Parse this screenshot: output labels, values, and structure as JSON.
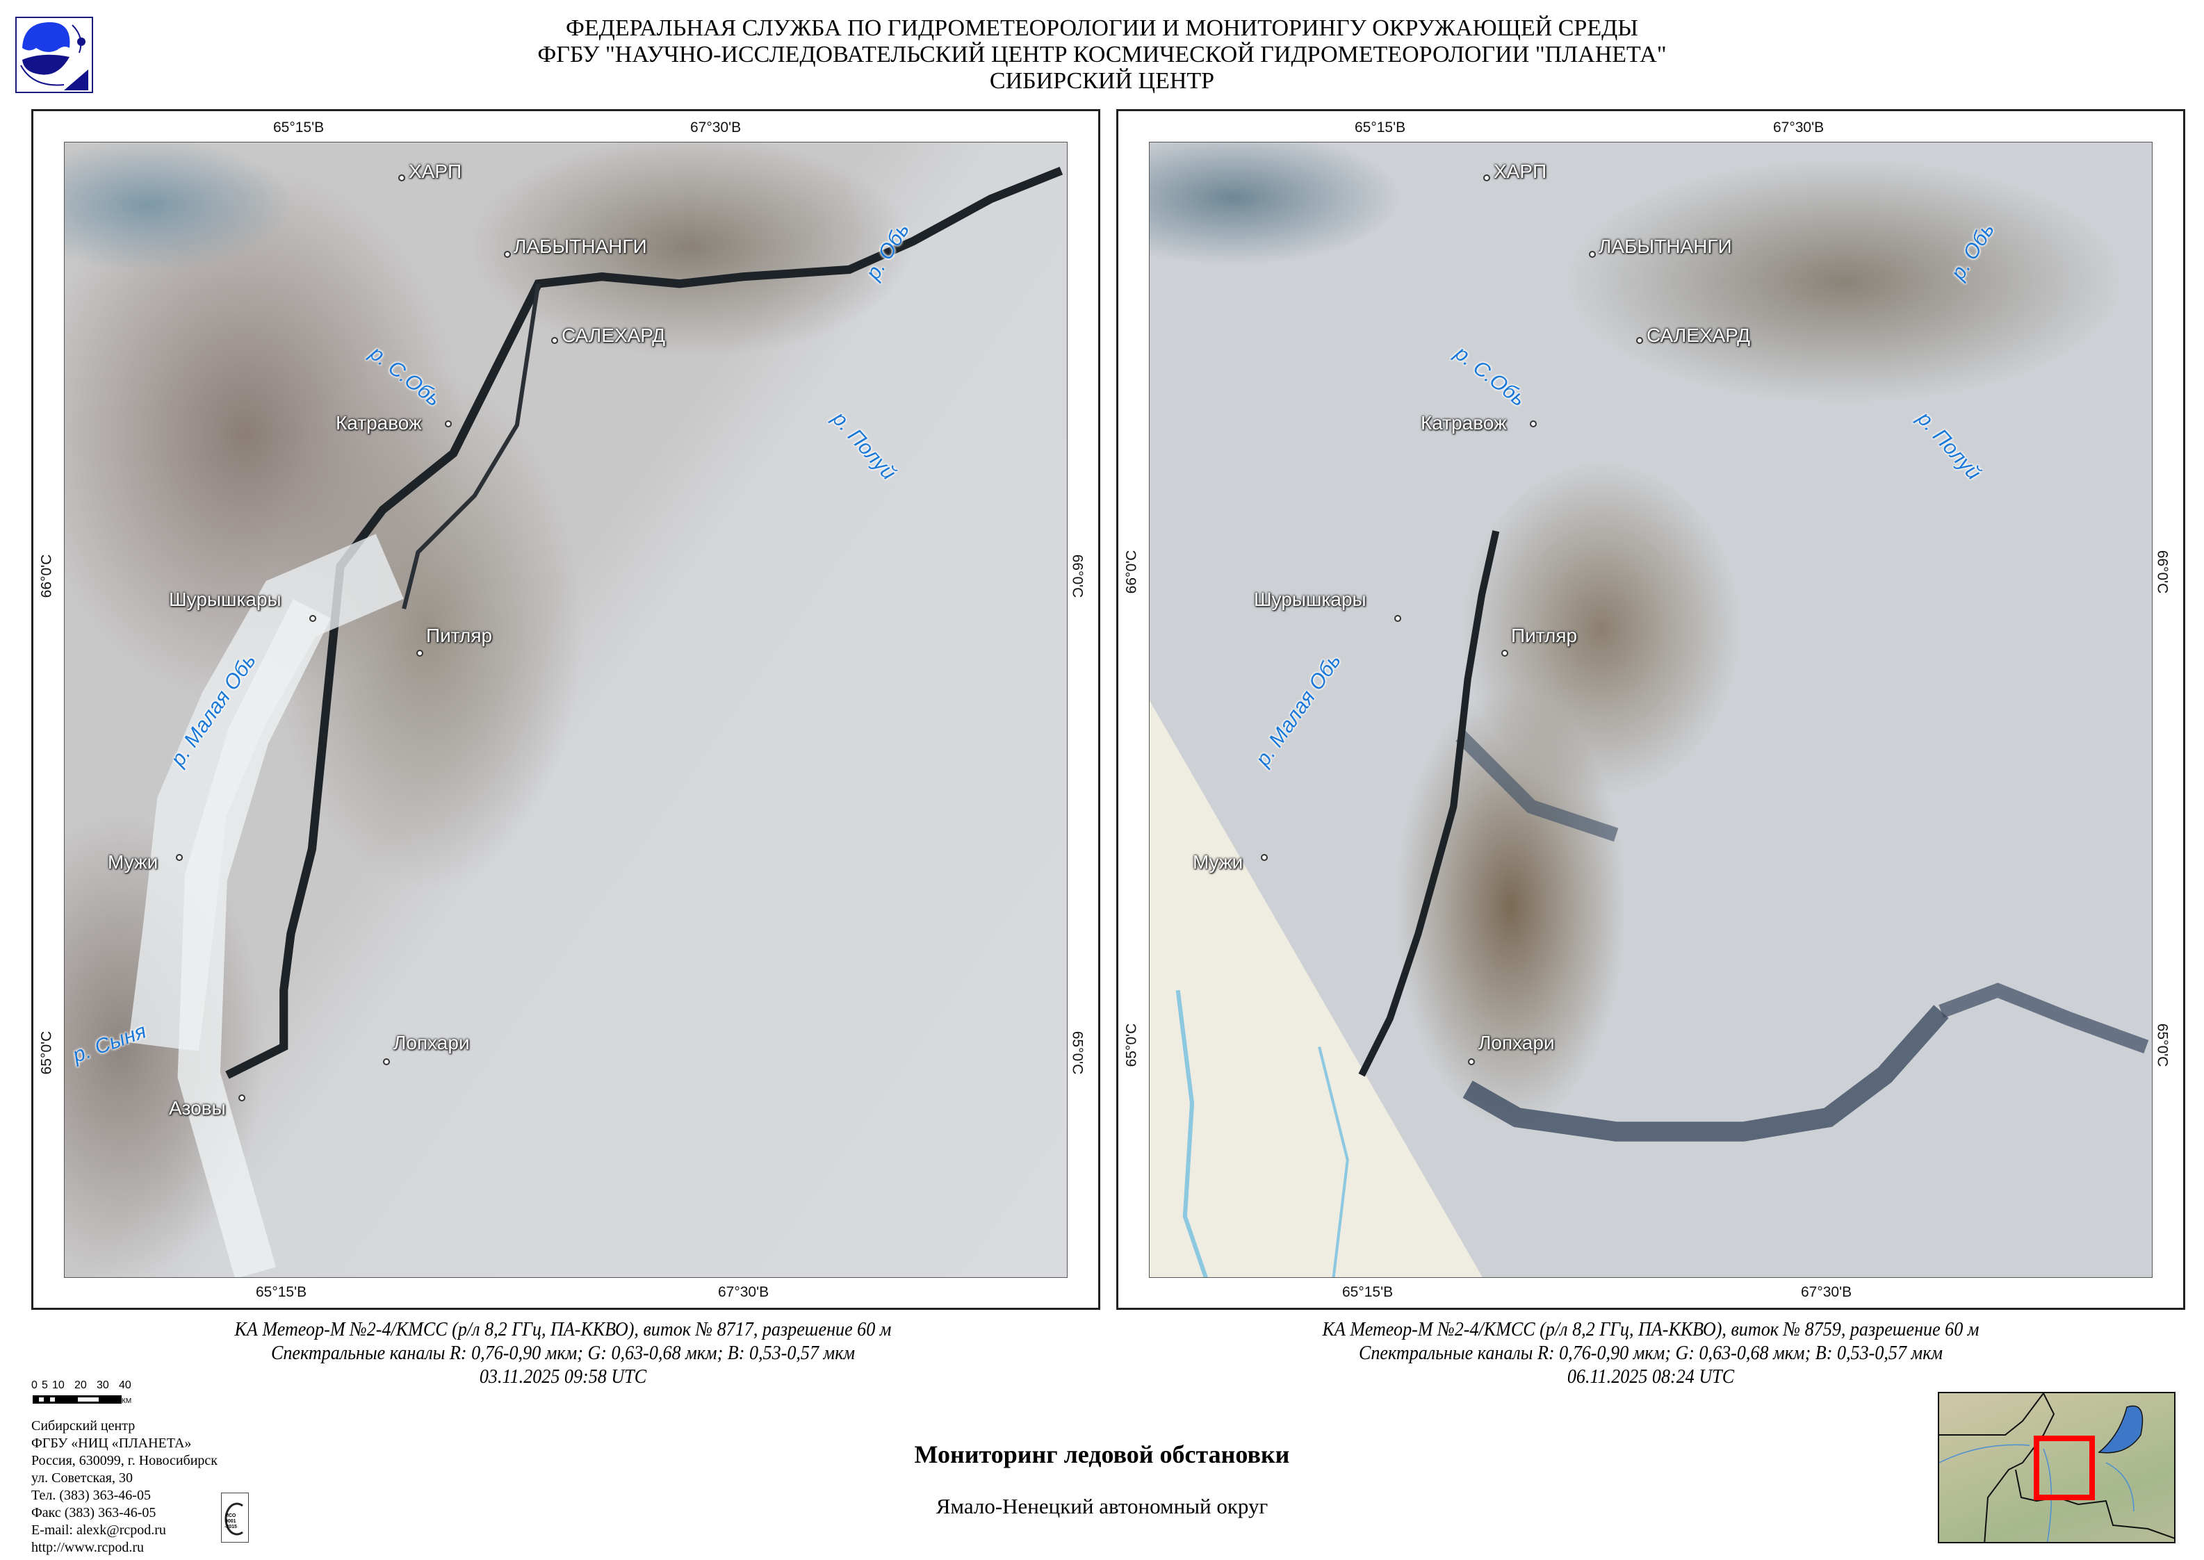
{
  "header": {
    "line1": "ФЕДЕРАЛЬНАЯ СЛУЖБА ПО ГИДРОМЕТЕОРОЛОГИИ И МОНИТОРИНГУ ОКРУЖАЮЩЕЙ СРЕДЫ",
    "line2": "ФГБУ \"НАУЧНО-ИССЛЕДОВАТЕЛЬСКИЙ ЦЕНТР КОСМИЧЕСКОЙ ГИДРОМЕТЕОРОЛОГИИ \"ПЛАНЕТА\"",
    "line3": "СИБИРСКИЙ ЦЕНТР"
  },
  "ticks": {
    "lon1": "65°15'В",
    "lon2": "67°30'В",
    "lat1": "66°0'С",
    "lat2": "65°0'С"
  },
  "places": {
    "harp": "ХАРП",
    "labytnangi": "ЛАБЫТНАНГИ",
    "salekhard": "САЛЕХАРД",
    "katravozh": "Катравож",
    "shuryshkary": "Шурышкары",
    "pitlyar": "Питляр",
    "muzhi": "Мужи",
    "lopkhari": "Лопхари",
    "azovy": "Азовы"
  },
  "rivers": {
    "ob": "р. Обь",
    "sob": "р. С.Обь",
    "poluy": "р. Полуй",
    "malaya_ob": "р. Малая Обь",
    "synya": "р. Сыня"
  },
  "maps": [
    {
      "caption1": "КА Метеор-М №2-4/КМСС (р/л 8,2 ГГц, ПА-ККВО), виток № 8717, разрешение 60 м",
      "caption2": "Спектральные каналы R: 0,76-0,90 мкм; G: 0,63-0,68 мкм; B: 0,53-0,57 мкм",
      "caption3": "03.11.2025  09:58 UTC"
    },
    {
      "caption1": "КА Метеор-М №2-4/КМСС (р/л 8,2 ГГц, ПА-ККВО), виток № 8759, разрешение 60 м",
      "caption2": "Спектральные каналы R: 0,76-0,90 мкм; G: 0,63-0,68 мкм; B: 0,53-0,57 мкм",
      "caption3": "06.11.2025  08:24 UTC"
    }
  ],
  "scale": {
    "labels": [
      "0",
      "5",
      "10",
      "20",
      "30",
      "40"
    ],
    "unit": "КМ"
  },
  "address": [
    "Сибирский центр",
    "ФГБУ «НИЦ «ПЛАНЕТА»",
    "Россия, 630099, г. Новосибирск",
    "ул. Советская, 30",
    "Тел. (383) 363-46-05",
    "Факс (383) 363-46-05",
    "E-mail: alexk@rcpod.ru",
    "http://www.rcpod.ru"
  ],
  "iso_logo": {
    "text": "ИСО 9001-2015",
    "top": "ДОБРОСОВЕСТНЫЙ",
    "bottom": "ПОСТАВЩИК"
  },
  "title": "Мониторинг ледовой обстановки",
  "subtitle": "Ямало-Ненецкий автономный округ",
  "colors": {
    "logo_blue": "#1a1aa8",
    "river_label": "#1a78d8",
    "inset_box": "#ff0000"
  }
}
